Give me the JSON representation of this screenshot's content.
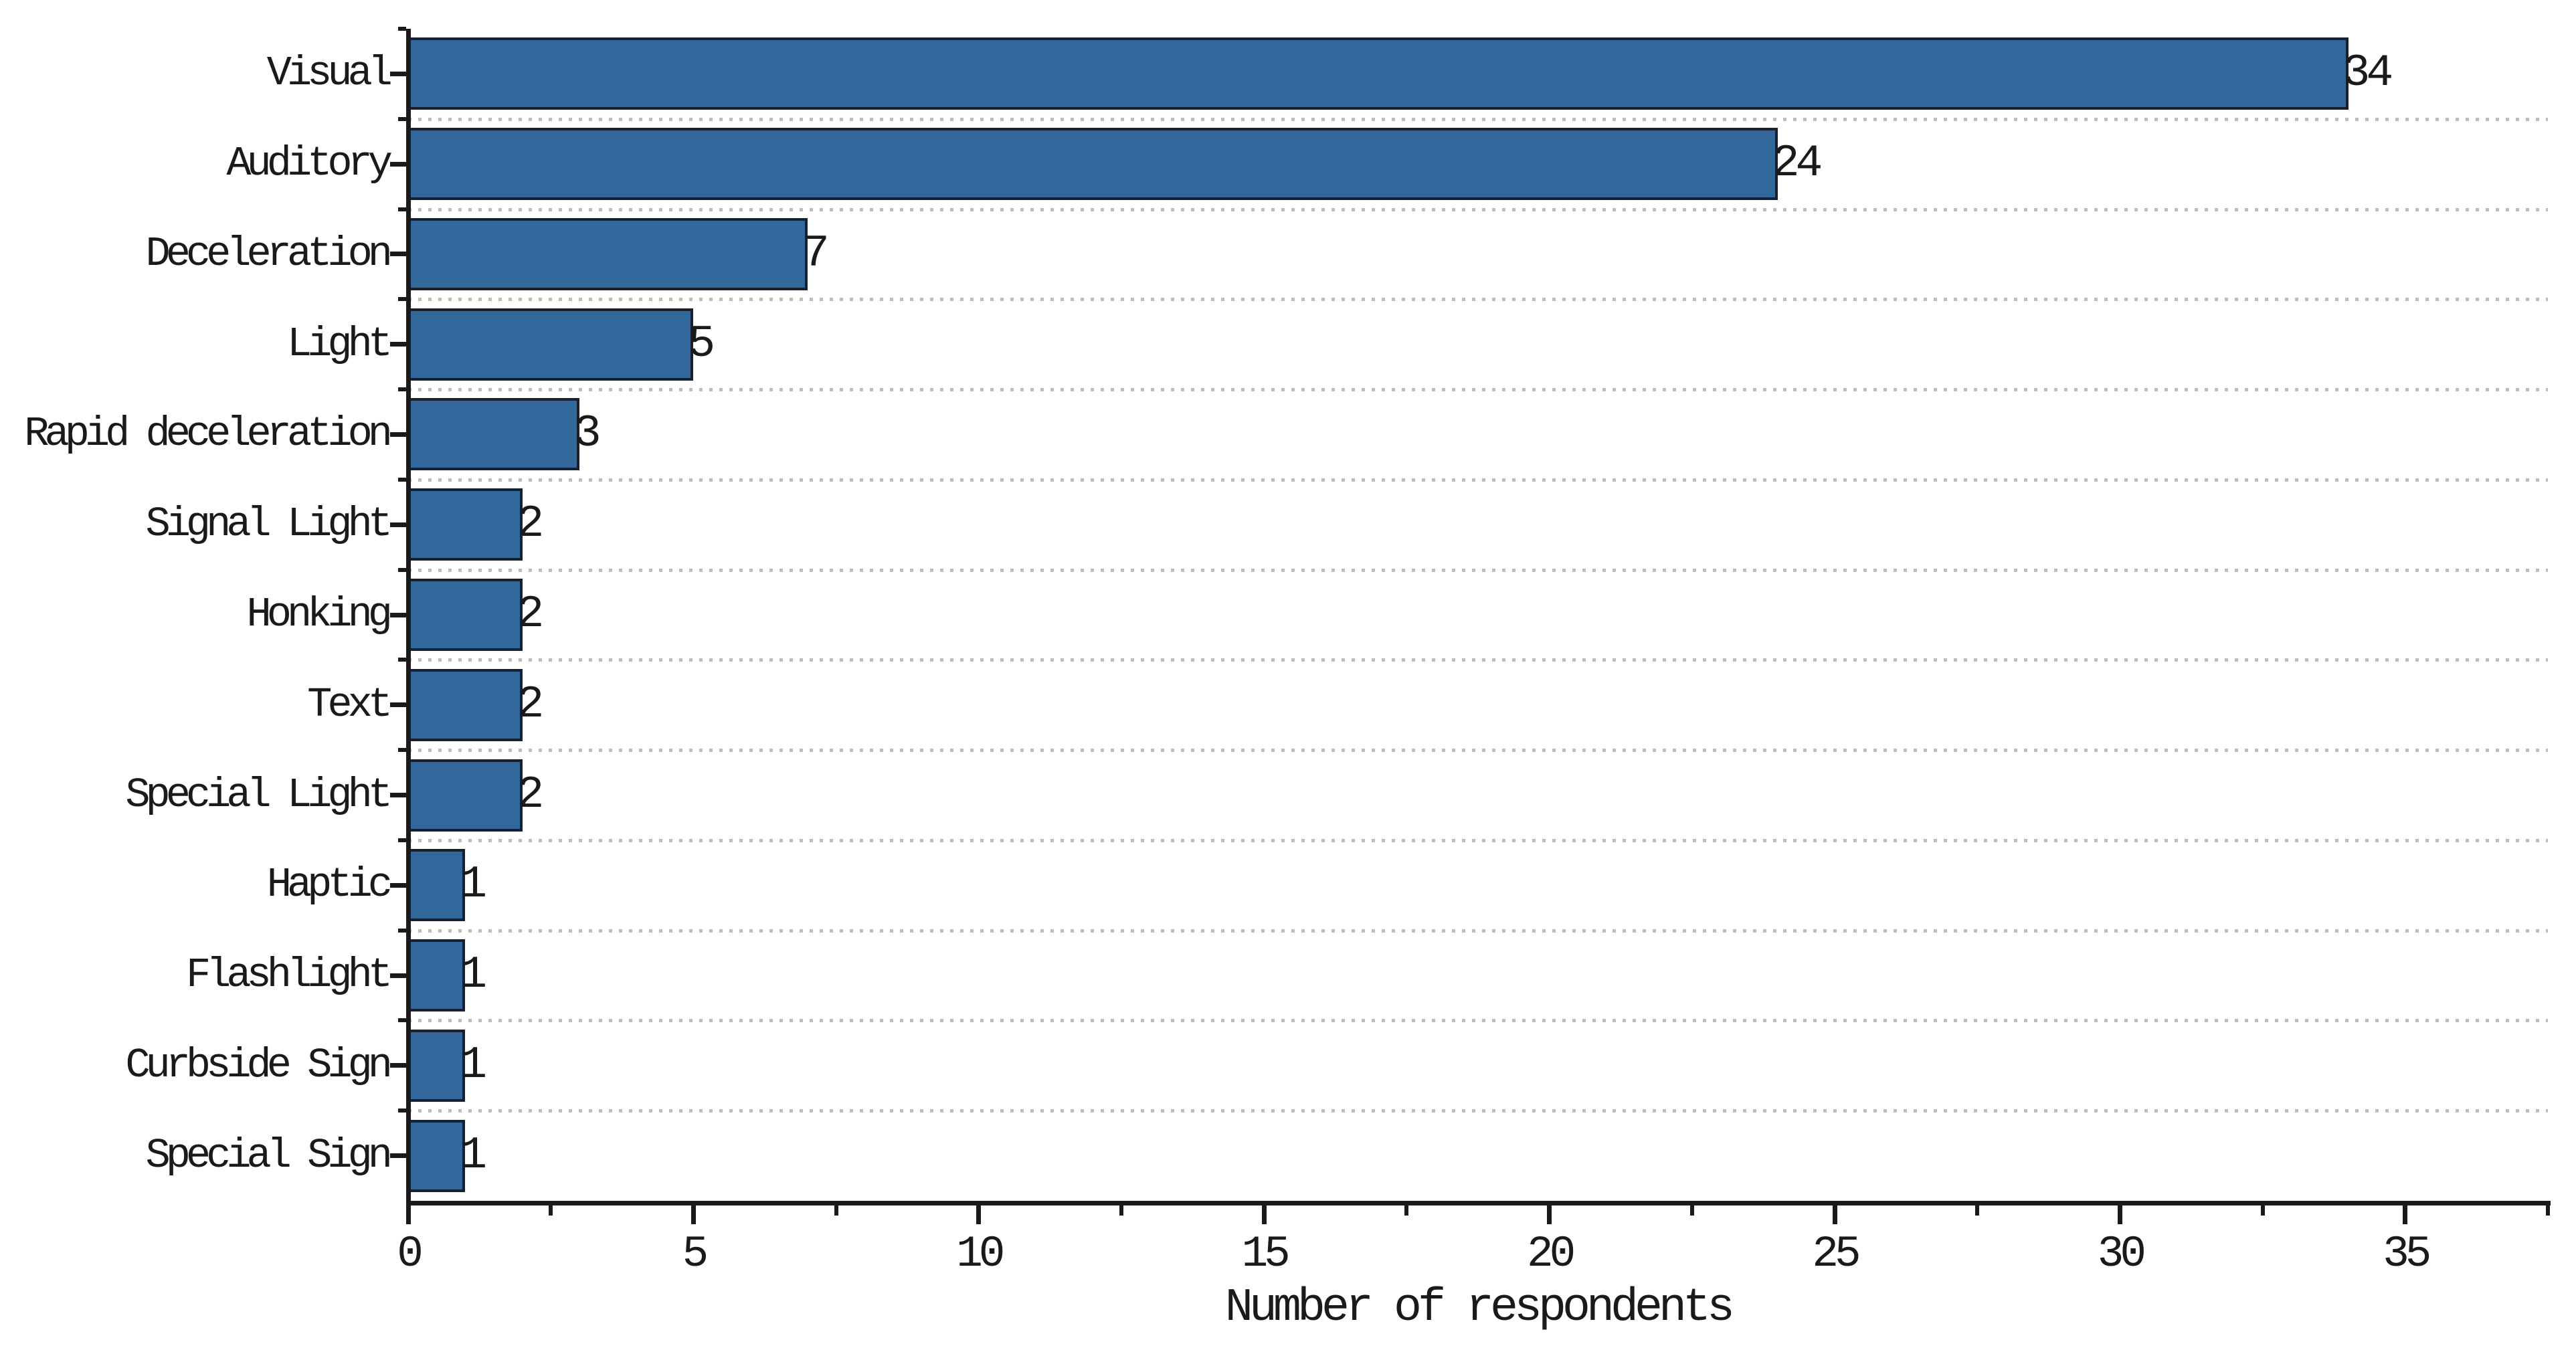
{
  "chart_data": {
    "type": "bar",
    "orientation": "horizontal",
    "title": "",
    "xlabel": "Number of respondents",
    "ylabel": "",
    "categories": [
      "Visual",
      "Auditory",
      "Deceleration",
      "Light",
      "Rapid deceleration",
      "Signal Light",
      "Honking",
      "Text",
      "Special Light",
      "Haptic",
      "Flashlight",
      "Curbside Sign",
      "Special Sign"
    ],
    "values": [
      34,
      24,
      7,
      5,
      3,
      2,
      2,
      2,
      2,
      1,
      1,
      1,
      1
    ],
    "bar_value_labels": [
      "34",
      "24",
      "7",
      "5",
      "3",
      "2",
      "2",
      "2",
      "2",
      "1",
      "1",
      "1",
      "1"
    ],
    "xlim": [
      0,
      37.5
    ],
    "xticks_major": [
      0,
      5,
      10,
      15,
      20,
      25,
      30,
      35
    ],
    "xticks_minor": [
      2.5,
      7.5,
      12.5,
      17.5,
      22.5,
      27.5,
      32.5,
      37.5
    ],
    "bar_height_fraction": 0.8,
    "grid": "dotted horizontal lines at category boundaries",
    "legend": null,
    "colors": {
      "bar_fill": "#33689C",
      "bar_border": "#16202E",
      "axis": "#1A1A1A",
      "grid": "#BDBDBD",
      "text": "#1A1A1A",
      "background": "#FFFFFF"
    }
  }
}
